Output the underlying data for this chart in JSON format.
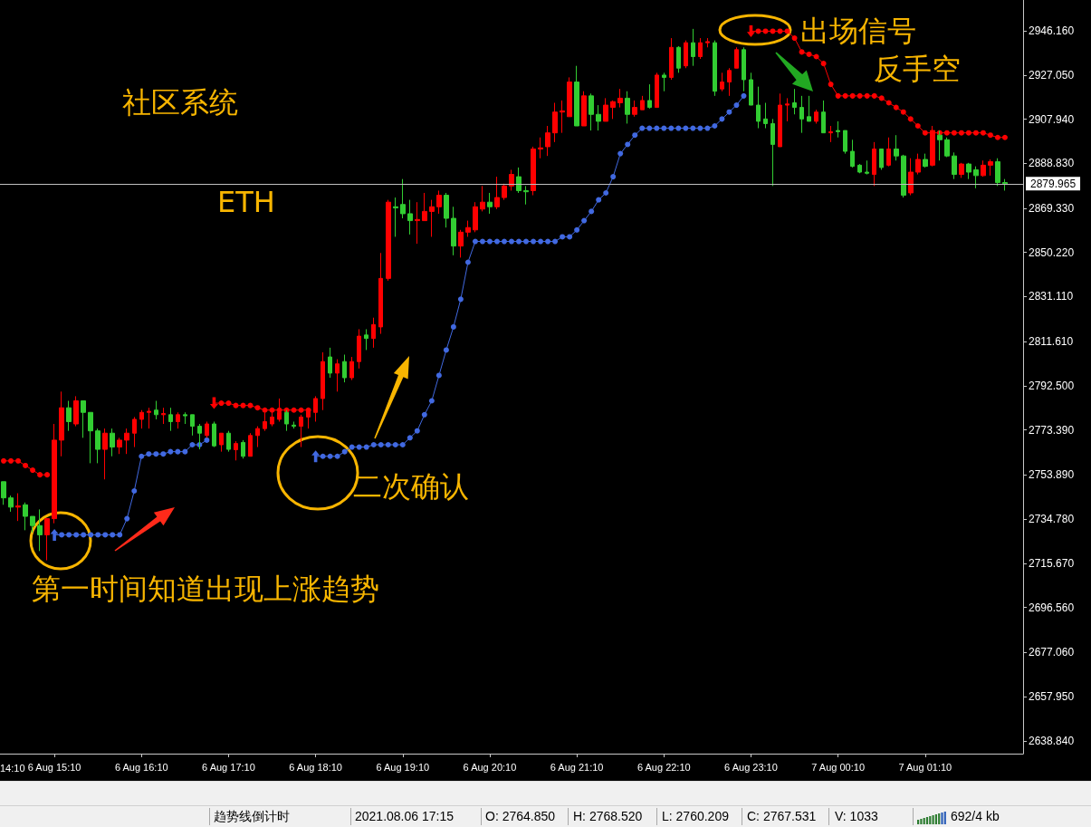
{
  "chart_data": {
    "type": "candlestick",
    "categories": [
      null,
      null,
      null,
      null,
      null,
      null,
      null,
      "6 Aug 15:10",
      null,
      null,
      null,
      null,
      null,
      null,
      null,
      null,
      null,
      null,
      null,
      "6 Aug 16:10",
      null,
      null,
      null,
      null,
      null,
      null,
      null,
      null,
      null,
      null,
      null,
      "6 Aug 17:10",
      null,
      null,
      null,
      null,
      null,
      null,
      null,
      null,
      null,
      null,
      null,
      "6 Aug 18:10",
      null,
      null,
      null,
      null,
      null,
      null,
      null,
      null,
      null,
      null,
      null,
      "6 Aug 19:10",
      null,
      null,
      null,
      null,
      null,
      null,
      null,
      null,
      null,
      null,
      null,
      "6 Aug 20:10",
      null,
      null,
      null,
      null,
      null,
      null,
      null,
      null,
      null,
      null,
      null,
      "6 Aug 21:10",
      null,
      null,
      null,
      null,
      null,
      null,
      null,
      null,
      null,
      null,
      null,
      "6 Aug 22:10",
      null,
      null,
      null,
      null,
      null,
      null,
      null,
      null,
      null,
      null,
      null,
      "6 Aug 23:10",
      null,
      null,
      null,
      null,
      null,
      null,
      null,
      null,
      null,
      null,
      null,
      "7 Aug 00:10",
      null,
      null,
      null,
      null,
      null,
      null,
      null,
      null,
      null,
      null,
      null,
      "7 Aug 01:10",
      null,
      null,
      null,
      null,
      null,
      null,
      null,
      null,
      null,
      null,
      null
    ],
    "ohlc": [
      [
        2751,
        2751,
        2741,
        2744
      ],
      [
        2744,
        2745,
        2738,
        2740
      ],
      [
        2740,
        2746,
        2734,
        2740.5
      ],
      [
        2741,
        2742,
        2730,
        2736
      ],
      [
        2736,
        2736,
        2729,
        2732
      ],
      [
        2732,
        2739,
        2721,
        2728
      ],
      [
        2728,
        2735,
        2717,
        2735
      ],
      [
        2735,
        2776,
        2733,
        2769
      ],
      [
        2769,
        2790,
        2762,
        2783
      ],
      [
        2783,
        2786,
        2773,
        2777
      ],
      [
        2776,
        2788,
        2775,
        2786
      ],
      [
        2786,
        2786,
        2770,
        2781
      ],
      [
        2781,
        2781,
        2759,
        2773
      ],
      [
        2773,
        2774,
        2759,
        2765
      ],
      [
        2765,
        2774,
        2752,
        2772
      ],
      [
        2772,
        2774,
        2762,
        2766
      ],
      [
        2766,
        2770,
        2763,
        2769
      ],
      [
        2769,
        2774,
        2763,
        2772
      ],
      [
        2772,
        2779,
        2766,
        2778
      ],
      [
        2778,
        2782,
        2774,
        2781
      ],
      [
        2781,
        2783,
        2774,
        2781.5
      ],
      [
        2782,
        2786,
        2778,
        2780
      ],
      [
        2780,
        2783,
        2776,
        2780.5
      ],
      [
        2780,
        2783,
        2773,
        2777
      ],
      [
        2777,
        2781,
        2774,
        2780
      ],
      [
        2780,
        2781,
        2776,
        2779.5
      ],
      [
        2780,
        2780,
        2771,
        2775
      ],
      [
        2775,
        2776,
        2765,
        2772
      ],
      [
        2771,
        2777,
        2770,
        2776
      ],
      [
        2776,
        2777,
        2766,
        2766.5
      ],
      [
        2767,
        2772,
        2764,
        2772
      ],
      [
        2772,
        2773,
        2764,
        2765
      ],
      [
        2764.85,
        2768.52,
        2760.209,
        2767.531
      ],
      [
        2768,
        2769,
        2761,
        2762
      ],
      [
        2762,
        2772,
        2762,
        2771
      ],
      [
        2771,
        2775,
        2766,
        2774
      ],
      [
        2774,
        2781,
        2773,
        2777
      ],
      [
        2776,
        2782,
        2775,
        2779
      ],
      [
        2778,
        2787,
        2777,
        2781
      ],
      [
        2781,
        2782,
        2773,
        2776
      ],
      [
        2775.5,
        2777,
        2774,
        2775
      ],
      [
        2775,
        2780,
        2766,
        2779
      ],
      [
        2779,
        2783,
        2774,
        2782
      ],
      [
        2781,
        2788,
        2777,
        2787
      ],
      [
        2787,
        2807,
        2782,
        2803
      ],
      [
        2805,
        2809,
        2796,
        2798
      ],
      [
        2798,
        2804,
        2790,
        2802
      ],
      [
        2803,
        2806,
        2794,
        2796
      ],
      [
        2796,
        2805,
        2795,
        2803
      ],
      [
        2803,
        2817,
        2800,
        2814
      ],
      [
        2814.5,
        2817,
        2808,
        2813
      ],
      [
        2813,
        2822,
        2809,
        2819
      ],
      [
        2818,
        2850,
        2815,
        2839
      ],
      [
        2839,
        2873,
        2838,
        2872
      ],
      [
        2870,
        2874,
        2857,
        2869.5
      ],
      [
        2871,
        2882,
        2865,
        2867
      ],
      [
        2867,
        2873,
        2858,
        2864
      ],
      [
        2864,
        2872,
        2854,
        2864.5
      ],
      [
        2864,
        2876,
        2864,
        2868
      ],
      [
        2868,
        2873,
        2857,
        2870
      ],
      [
        2870,
        2877,
        2867,
        2875
      ],
      [
        2875,
        2876,
        2861,
        2865
      ],
      [
        2865,
        2870,
        2849,
        2853
      ],
      [
        2853,
        2860,
        2848,
        2859
      ],
      [
        2859,
        2864,
        2857,
        2861
      ],
      [
        2860,
        2872,
        2859,
        2870
      ],
      [
        2869,
        2879,
        2868,
        2872
      ],
      [
        2872,
        2876,
        2867,
        2870
      ],
      [
        2870,
        2883,
        2869,
        2874
      ],
      [
        2874,
        2880,
        2873,
        2879
      ],
      [
        2879,
        2886,
        2877,
        2884
      ],
      [
        2883,
        2887,
        2876,
        2877
      ],
      [
        2877,
        2879,
        2871,
        2876.5
      ],
      [
        2877,
        2896,
        2875,
        2895
      ],
      [
        2895,
        2900,
        2891,
        2895.5
      ],
      [
        2896,
        2905,
        2892,
        2902
      ],
      [
        2902,
        2915,
        2898,
        2911
      ],
      [
        2911,
        2916,
        2902,
        2911.5
      ],
      [
        2909,
        2926,
        2909,
        2924
      ],
      [
        2924,
        2931,
        2905,
        2905
      ],
      [
        2905,
        2920,
        2905,
        2918
      ],
      [
        2918,
        2919,
        2903,
        2910
      ],
      [
        2910,
        2914,
        2903,
        2907
      ],
      [
        2907,
        2917,
        2907,
        2914
      ],
      [
        2913,
        2916,
        2908,
        2915.5
      ],
      [
        2915,
        2921,
        2913,
        2917
      ],
      [
        2917,
        2920,
        2906,
        2910
      ],
      [
        2910,
        2916,
        2909,
        2913
      ],
      [
        2912,
        2918,
        2912,
        2916
      ],
      [
        2916,
        2923,
        2912.5,
        2913
      ],
      [
        2913,
        2928,
        2913,
        2927
      ],
      [
        2927,
        2928,
        2920,
        2926
      ],
      [
        2926,
        2943,
        2925,
        2939
      ],
      [
        2939,
        2939.5,
        2928,
        2930
      ],
      [
        2931,
        2942,
        2930,
        2941
      ],
      [
        2941,
        2947,
        2931,
        2935
      ],
      [
        2935,
        2943,
        2934,
        2941
      ],
      [
        2941,
        2943,
        2939,
        2941.5
      ],
      [
        2941,
        2942,
        2918,
        2920
      ],
      [
        2921,
        2928,
        2920,
        2924
      ],
      [
        2924,
        2930,
        2918,
        2929
      ],
      [
        2930,
        2939,
        2930,
        2938
      ],
      [
        2938,
        2939,
        2920,
        2925
      ],
      [
        2925,
        2928,
        2914,
        2914
      ],
      [
        2914,
        2922,
        2904,
        2907
      ],
      [
        2908,
        2915,
        2904,
        2906
      ],
      [
        2906,
        2908,
        2879,
        2897
      ],
      [
        2896,
        2919,
        2896,
        2914
      ],
      [
        2914,
        2917,
        2907,
        2914.5
      ],
      [
        2915,
        2921,
        2910,
        2913
      ],
      [
        2913,
        2918,
        2902,
        2908
      ],
      [
        2909,
        2918,
        2907,
        2907
      ],
      [
        2907,
        2912,
        2906,
        2911
      ],
      [
        2911,
        2916,
        2902,
        2902
      ],
      [
        2902,
        2905,
        2898,
        2902.5
      ],
      [
        2903,
        2907,
        2900,
        2902.5
      ],
      [
        2903,
        2903,
        2893,
        2894
      ],
      [
        2894,
        2899,
        2887,
        2887.5
      ],
      [
        2888,
        2888.5,
        2884.5,
        2885
      ],
      [
        2885,
        2890,
        2884,
        2884.5
      ],
      [
        2884,
        2898,
        2879,
        2895
      ],
      [
        2895,
        2895,
        2886,
        2887
      ],
      [
        2888,
        2900,
        2887.5,
        2895
      ],
      [
        2895,
        2901,
        2890,
        2892
      ],
      [
        2892,
        2892.5,
        2874,
        2875
      ],
      [
        2876,
        2891,
        2875,
        2885
      ],
      [
        2885,
        2893,
        2884,
        2890.5
      ],
      [
        2890.5,
        2893,
        2887,
        2887.5
      ],
      [
        2888,
        2905,
        2887.5,
        2903
      ],
      [
        2901,
        2903,
        2890,
        2899
      ],
      [
        2899,
        2900,
        2891.5,
        2892
      ],
      [
        2892,
        2893.5,
        2882,
        2884
      ],
      [
        2884,
        2889,
        2882.5,
        2888.5
      ],
      [
        2888.5,
        2889,
        2882,
        2885
      ],
      [
        2886,
        2887.5,
        2878,
        2883.5
      ],
      [
        2883.5,
        2890,
        2883,
        2888
      ],
      [
        2888,
        2890.5,
        2883.5,
        2889.5
      ],
      [
        2889.5,
        2891,
        2879,
        2880.5
      ],
      [
        2880.5,
        2882,
        2877,
        2879.965
      ]
    ],
    "colors": [
      "#32cd32",
      "#32cd32",
      "#ff0000",
      "#32cd32",
      "#32cd32",
      "#32cd32",
      "#ff0000",
      "#ff0000",
      "#ff0000",
      "#32cd32",
      "#ff0000",
      "#32cd32",
      "#32cd32",
      "#32cd32",
      "#ff0000",
      "#32cd32",
      "#ff0000",
      "#ff0000",
      "#ff0000",
      "#ff0000",
      "#ff0000",
      "#32cd32",
      "#ff0000",
      "#32cd32",
      "#ff0000",
      "#32cd32",
      "#32cd32",
      "#32cd32",
      "#ff0000",
      "#32cd32",
      "#ff0000",
      "#32cd32",
      "#ff0000",
      "#32cd32",
      "#ff0000",
      "#ff0000",
      "#ff0000",
      "#ff0000",
      "#ff0000",
      "#32cd32",
      "#32cd32",
      "#ff0000",
      "#ff0000",
      "#ff0000",
      "#ff0000",
      "#32cd32",
      "#ff0000",
      "#32cd32",
      "#ff0000",
      "#ff0000",
      "#32cd32",
      "#ff0000",
      "#ff0000",
      "#ff0000",
      "#32cd32",
      "#32cd32",
      "#32cd32",
      "#ff0000",
      "#ff0000",
      "#ff0000",
      "#ff0000",
      "#32cd32",
      "#32cd32",
      "#ff0000",
      "#ff0000",
      "#ff0000",
      "#ff0000",
      "#32cd32",
      "#ff0000",
      "#ff0000",
      "#ff0000",
      "#32cd32",
      "#32cd32",
      "#ff0000",
      "#ff0000",
      "#ff0000",
      "#ff0000",
      "#ff0000",
      "#ff0000",
      "#32cd32",
      "#ff0000",
      "#32cd32",
      "#32cd32",
      "#ff0000",
      "#ff0000",
      "#ff0000",
      "#32cd32",
      "#ff0000",
      "#ff0000",
      "#32cd32",
      "#ff0000",
      "#32cd32",
      "#ff0000",
      "#32cd32",
      "#ff0000",
      "#32cd32",
      "#ff0000",
      "#ff0000",
      "#32cd32",
      "#ff0000",
      "#ff0000",
      "#ff0000",
      "#32cd32",
      "#32cd32",
      "#32cd32",
      "#32cd32",
      "#32cd32",
      "#ff0000",
      "#ff0000",
      "#32cd32",
      "#32cd32",
      "#32cd32",
      "#ff0000",
      "#32cd32",
      "#ff0000",
      "#32cd32",
      "#32cd32",
      "#32cd32",
      "#32cd32",
      "#32cd32",
      "#ff0000",
      "#32cd32",
      "#ff0000",
      "#32cd32",
      "#32cd32",
      "#ff0000",
      "#ff0000",
      "#32cd32",
      "#ff0000",
      "#32cd32",
      "#32cd32",
      "#32cd32",
      "#ff0000",
      "#32cd32",
      "#32cd32",
      "#ff0000",
      "#ff0000",
      "#32cd32",
      "#32cd32"
    ],
    "series": [
      {
        "type": "line",
        "color": "#4169e1",
        "values": [
          null,
          null,
          null,
          null,
          null,
          null,
          null,
          2728,
          2728,
          2728,
          2728,
          2728,
          2728,
          2728,
          2728,
          2728,
          2728,
          2735,
          2747,
          2762,
          2763,
          2763,
          2763,
          2764,
          2764,
          2764,
          2767,
          2767,
          2769,
          null,
          null,
          null,
          null,
          null,
          null,
          null,
          null,
          null,
          null,
          null,
          null,
          null,
          null,
          2762,
          2762,
          2762,
          2762,
          2764,
          2766,
          2766,
          2766,
          2767,
          2767,
          2767,
          2767,
          2767,
          2770,
          2773,
          2780,
          2786,
          2797,
          2808,
          2818,
          2830,
          2846,
          2855,
          2855,
          2855,
          2855,
          2855,
          2855,
          2855,
          2855,
          2855,
          2855,
          2855,
          2855,
          2857,
          2857,
          2860,
          2864,
          2868,
          2873,
          2876,
          2883,
          2893,
          2897,
          2901,
          2904,
          2904,
          2904,
          2904,
          2904,
          2904,
          2904,
          2904,
          2904,
          2904,
          2905,
          2908,
          2911,
          2914,
          2918,
          null,
          null,
          null,
          null,
          null,
          null,
          null,
          null,
          null,
          null,
          null,
          null,
          null,
          null,
          null,
          null,
          null,
          null,
          null,
          null,
          null,
          null,
          null,
          null,
          null,
          null,
          null,
          null,
          null,
          null,
          null,
          null,
          null,
          null,
          null,
          null
        ]
      },
      {
        "type": "line",
        "color": "#ff0000",
        "values": [
          2760,
          2760,
          2760,
          2758,
          2756,
          2754,
          2754,
          null,
          null,
          null,
          null,
          null,
          null,
          null,
          null,
          null,
          null,
          null,
          null,
          null,
          null,
          null,
          null,
          null,
          null,
          null,
          null,
          null,
          null,
          2785,
          2785,
          2785,
          2784,
          2784,
          2784,
          2783,
          2782,
          2782,
          2782,
          2782,
          2782,
          2782,
          2782,
          null,
          null,
          null,
          null,
          null,
          null,
          null,
          null,
          null,
          null,
          null,
          null,
          null,
          null,
          null,
          null,
          null,
          null,
          null,
          null,
          null,
          null,
          null,
          null,
          null,
          null,
          null,
          null,
          null,
          null,
          null,
          null,
          null,
          null,
          null,
          null,
          null,
          null,
          null,
          null,
          null,
          null,
          null,
          null,
          null,
          null,
          null,
          null,
          null,
          null,
          null,
          null,
          null,
          null,
          null,
          null,
          null,
          null,
          null,
          null,
          2946,
          2946,
          2946,
          2946,
          2946,
          2946,
          2943,
          2937,
          2936,
          2935,
          2932,
          2923,
          2918,
          2918,
          2918,
          2918,
          2918,
          2918,
          2917,
          2915,
          2913,
          2911,
          2908,
          2905,
          2902,
          2902,
          2902,
          2902,
          2902,
          2902,
          2902,
          2902,
          2902,
          2901,
          2900,
          2900
        ]
      }
    ],
    "marker": "circle",
    "line_style": "solid",
    "ylim": [
      2633.3,
      2959.5
    ],
    "yticks": [
      {
        "value": 2638.84,
        "label": "2638.840"
      },
      {
        "value": 2657.95,
        "label": "2657.950"
      },
      {
        "value": 2677.06,
        "label": "2677.060"
      },
      {
        "value": 2696.56,
        "label": "2696.560"
      },
      {
        "value": 2715.67,
        "label": "2715.670"
      },
      {
        "value": 2734.78,
        "label": "2734.780"
      },
      {
        "value": 2753.89,
        "label": "2753.890"
      },
      {
        "value": 2773.39,
        "label": "2773.390"
      },
      {
        "value": 2792.5,
        "label": "2792.500"
      },
      {
        "value": 2811.61,
        "label": "2811.610"
      },
      {
        "value": 2831.11,
        "label": "2831.110"
      },
      {
        "value": 2850.22,
        "label": "2850.220"
      },
      {
        "value": 2869.33,
        "label": "2869.330"
      },
      {
        "value": 2888.83,
        "label": "2888.830"
      },
      {
        "value": 2907.94,
        "label": "2907.940"
      },
      {
        "value": 2927.05,
        "label": "2927.050"
      },
      {
        "value": 2946.16,
        "label": "2946.160"
      }
    ],
    "ref_lines": [
      {
        "axis": "y",
        "value": 2879.965,
        "label": "2879.965",
        "color": "#c0c0c0"
      }
    ],
    "annotations": [
      "社区系统",
      "ETH",
      "出场信号",
      "反手空",
      "二次确认",
      "第一时间知道出现上涨趋势",
      "14:10",
      "趋势线倒计时",
      "2021.08.06 17:15",
      "O: 2764.850",
      "H: 2768.520",
      "L: 2760.209",
      "C: 2767.531",
      "V: 1033",
      "692/4 kb"
    ]
  }
}
